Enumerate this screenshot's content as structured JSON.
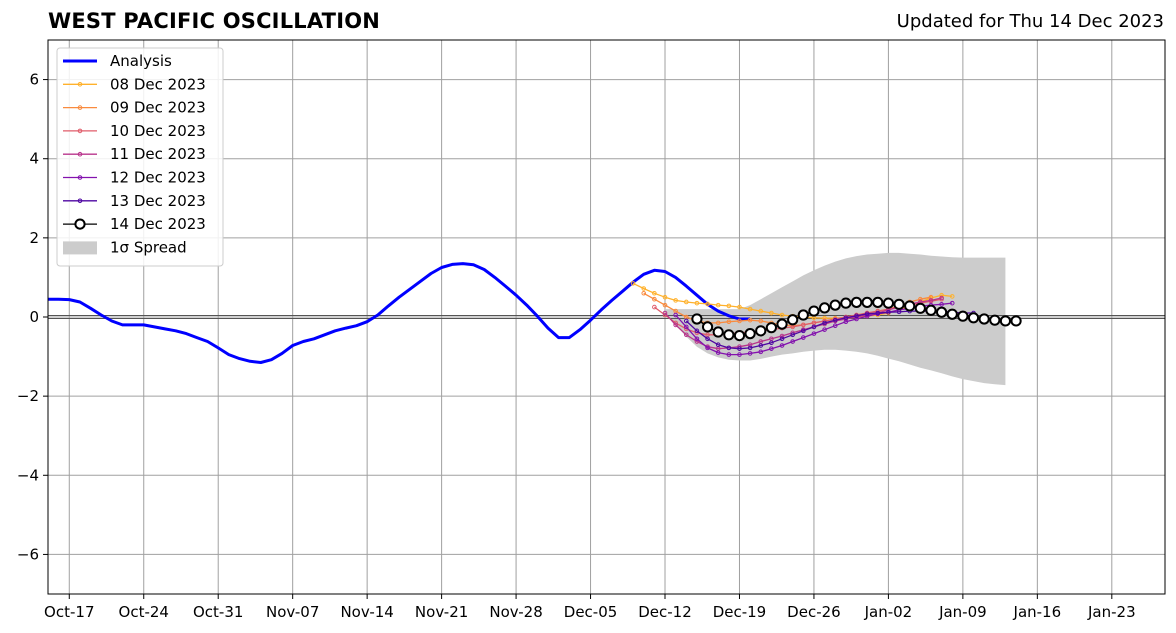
{
  "header": {
    "title": "WEST PACIFIC OSCILLATION",
    "updated": "Updated for Thu 14 Dec 2023"
  },
  "chart_data": {
    "type": "line",
    "title": "WEST PACIFIC OSCILLATION",
    "subtitle": "Updated for Thu 14 Dec 2023",
    "xlabel": "",
    "ylabel": "",
    "xlim": [
      "2023-10-15",
      "2024-01-28"
    ],
    "ylim": [
      -7,
      7
    ],
    "grid": true,
    "legend_position": "top-left",
    "x_ticks": [
      "2023-10-17",
      "2023-10-24",
      "2023-10-31",
      "2023-11-07",
      "2023-11-14",
      "2023-11-21",
      "2023-11-28",
      "2023-12-05",
      "2023-12-12",
      "2023-12-19",
      "2023-12-26",
      "2024-01-02",
      "2024-01-09",
      "2024-01-16",
      "2024-01-23"
    ],
    "x_tick_labels": [
      "Oct-17",
      "Oct-24",
      "Oct-31",
      "Nov-07",
      "Nov-14",
      "Nov-21",
      "Nov-28",
      "Dec-05",
      "Dec-12",
      "Dec-19",
      "Dec-26",
      "Jan-02",
      "Jan-09",
      "Jan-16",
      "Jan-23"
    ],
    "y_ticks": [
      -6,
      -4,
      -2,
      0,
      2,
      4,
      6
    ],
    "y_tick_labels": [
      "−6",
      "−4",
      "−2",
      "0",
      "2",
      "4",
      "6"
    ],
    "series": [
      {
        "name": "Analysis",
        "color": "#0000ff",
        "start": "2023-10-15",
        "values": [
          0.45,
          0.45,
          0.44,
          0.38,
          0.22,
          0.05,
          -0.1,
          -0.2,
          -0.2,
          -0.2,
          -0.25,
          -0.3,
          -0.35,
          -0.42,
          -0.52,
          -0.62,
          -0.78,
          -0.95,
          -1.05,
          -1.12,
          -1.15,
          -1.08,
          -0.92,
          -0.72,
          -0.62,
          -0.55,
          -0.45,
          -0.35,
          -0.28,
          -0.22,
          -0.12,
          0.05,
          0.28,
          0.5,
          0.7,
          0.9,
          1.1,
          1.25,
          1.33,
          1.35,
          1.32,
          1.2,
          1.0,
          0.78,
          0.55,
          0.3,
          0.02,
          -0.28,
          -0.52,
          -0.52,
          -0.32,
          -0.08,
          0.18,
          0.42,
          0.65,
          0.88,
          1.08,
          1.18,
          1.15,
          1.0,
          0.78,
          0.55,
          0.32,
          0.15,
          0.03,
          -0.05,
          -0.05
        ]
      },
      {
        "name": "08 Dec 2023",
        "color": "#ffb12b",
        "start": "2023-12-09",
        "values": [
          0.85,
          0.72,
          0.6,
          0.5,
          0.42,
          0.38,
          0.35,
          0.33,
          0.3,
          0.28,
          0.25,
          0.2,
          0.15,
          0.1,
          0.05,
          0.02,
          0.0,
          -0.02,
          -0.03,
          -0.03,
          -0.02,
          0.0,
          0.02,
          0.05,
          0.1,
          0.18,
          0.28,
          0.38,
          0.48,
          0.55,
          0.52
        ]
      },
      {
        "name": "09 Dec 2023",
        "color": "#f98b3f",
        "start": "2023-12-10",
        "values": [
          0.6,
          0.45,
          0.3,
          0.15,
          0.0,
          -0.1,
          -0.15,
          -0.15,
          -0.12,
          -0.1,
          -0.08,
          -0.1,
          -0.15,
          -0.2,
          -0.22,
          -0.2,
          -0.15,
          -0.1,
          -0.05,
          0.0,
          0.05,
          0.1,
          0.15,
          0.2,
          0.28,
          0.38,
          0.45,
          0.5
        ]
      },
      {
        "name": "10 Dec 2023",
        "color": "#e05c6a",
        "start": "2023-12-11",
        "values": [
          0.25,
          0.05,
          -0.15,
          -0.3,
          -0.4,
          -0.45,
          -0.45,
          -0.42,
          -0.4,
          -0.38,
          -0.35,
          -0.32,
          -0.28,
          -0.25,
          -0.2,
          -0.15,
          -0.1,
          -0.05,
          0.0,
          0.05,
          0.1,
          0.15,
          0.2,
          0.25,
          0.3,
          0.35,
          0.4,
          0.45
        ]
      },
      {
        "name": "11 Dec 2023",
        "color": "#b8348c",
        "start": "2023-12-12",
        "values": [
          0.1,
          -0.2,
          -0.45,
          -0.62,
          -0.75,
          -0.8,
          -0.78,
          -0.75,
          -0.7,
          -0.62,
          -0.55,
          -0.48,
          -0.4,
          -0.32,
          -0.25,
          -0.18,
          -0.1,
          -0.05,
          0.0,
          0.05,
          0.1,
          0.18,
          0.25,
          0.32,
          0.38,
          0.42,
          0.48
        ]
      },
      {
        "name": "12 Dec 2023",
        "color": "#8312ae",
        "start": "2023-12-13",
        "values": [
          0.05,
          -0.25,
          -0.55,
          -0.78,
          -0.9,
          -0.95,
          -0.95,
          -0.92,
          -0.88,
          -0.8,
          -0.72,
          -0.62,
          -0.52,
          -0.42,
          -0.32,
          -0.22,
          -0.12,
          -0.05,
          0.02,
          0.08,
          0.12,
          0.18,
          0.22,
          0.27,
          0.3,
          0.32,
          0.35
        ]
      },
      {
        "name": "13 Dec 2023",
        "color": "#4e06a2",
        "start": "2023-12-14",
        "values": [
          -0.1,
          -0.35,
          -0.55,
          -0.7,
          -0.78,
          -0.8,
          -0.78,
          -0.72,
          -0.65,
          -0.55,
          -0.45,
          -0.35,
          -0.25,
          -0.15,
          -0.08,
          -0.02,
          0.03,
          0.08,
          0.1,
          0.12,
          0.13,
          0.15,
          0.15,
          0.15,
          0.15,
          0.12,
          0.1,
          0.1
        ]
      },
      {
        "name": "14 Dec 2023",
        "color": "#000000",
        "start": "2023-12-15",
        "values": [
          -0.05,
          -0.25,
          -0.38,
          -0.45,
          -0.47,
          -0.42,
          -0.35,
          -0.27,
          -0.18,
          -0.07,
          0.05,
          0.15,
          0.23,
          0.3,
          0.35,
          0.37,
          0.37,
          0.37,
          0.35,
          0.32,
          0.28,
          0.22,
          0.17,
          0.12,
          0.07,
          0.02,
          -0.02,
          -0.05,
          -0.08,
          -0.1,
          -0.1
        ]
      }
    ],
    "spread": {
      "name": "1σ Spread",
      "color": "#cccccc",
      "start": "2023-12-12",
      "upper": [
        0.2,
        0.2,
        0.2,
        0.2,
        0.2,
        0.2,
        0.2,
        0.2,
        0.3,
        0.45,
        0.6,
        0.75,
        0.9,
        1.05,
        1.18,
        1.3,
        1.4,
        1.48,
        1.54,
        1.58,
        1.6,
        1.62,
        1.62,
        1.6,
        1.58,
        1.55,
        1.53,
        1.51,
        1.5,
        1.5,
        1.5,
        1.5,
        1.5
      ],
      "lower": [
        0.1,
        -0.2,
        -0.5,
        -0.75,
        -0.92,
        -1.02,
        -1.08,
        -1.1,
        -1.1,
        -1.06,
        -1.0,
        -0.95,
        -0.92,
        -0.88,
        -0.85,
        -0.83,
        -0.83,
        -0.85,
        -0.88,
        -0.92,
        -0.98,
        -1.05,
        -1.12,
        -1.2,
        -1.28,
        -1.35,
        -1.42,
        -1.5,
        -1.57,
        -1.62,
        -1.67,
        -1.7,
        -1.72
      ]
    }
  }
}
